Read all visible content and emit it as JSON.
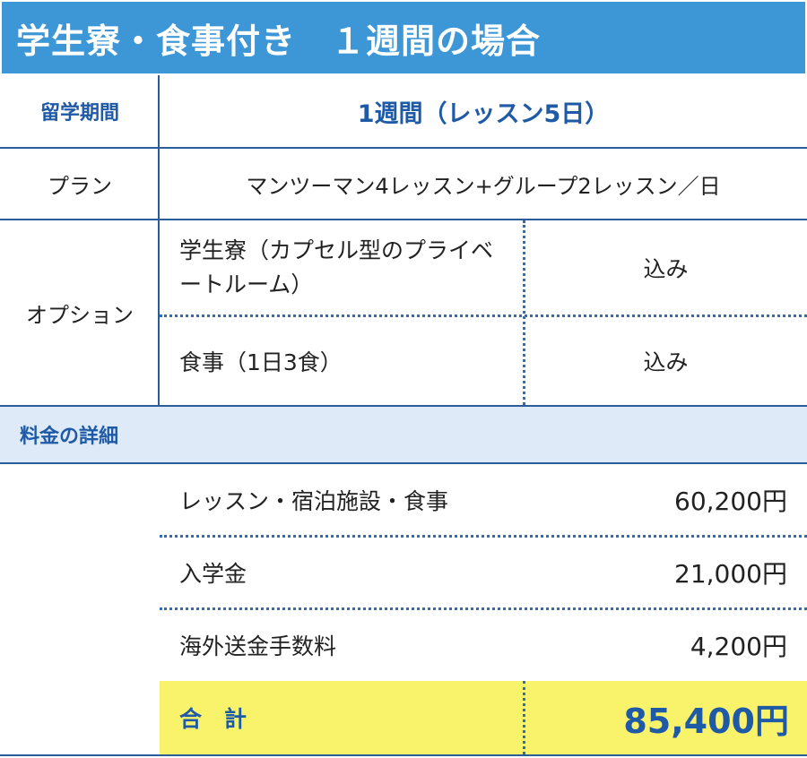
{
  "title": "学生寮・食事付き　１週間の場合",
  "period": {
    "label": "留学期間",
    "value": "1週間（レッスン5日）"
  },
  "plan": {
    "label": "プラン",
    "value": "マンツーマン4レッスン+グループ2レッスン／日"
  },
  "options": {
    "label": "オプション",
    "items": [
      {
        "name": "学生寮（カプセル型のプライベートルーム）",
        "value": "込み"
      },
      {
        "name": "食事（1日3食）",
        "value": "込み"
      }
    ]
  },
  "fee_section": {
    "label": "料金の詳細"
  },
  "fees": [
    {
      "name": "レッスン・宿泊施設・食事",
      "amount": "60,200円"
    },
    {
      "name": "入学金",
      "amount": "21,000円"
    },
    {
      "name": "海外送金手数料",
      "amount": "4,200円"
    }
  ],
  "total": {
    "label": "合　計",
    "amount": "85,400円"
  },
  "colors": {
    "header_blue": "#3d96d6",
    "label_blue": "#1f5aa6",
    "section_bg": "#deeaf7",
    "total_bg": "#f8f36a"
  }
}
